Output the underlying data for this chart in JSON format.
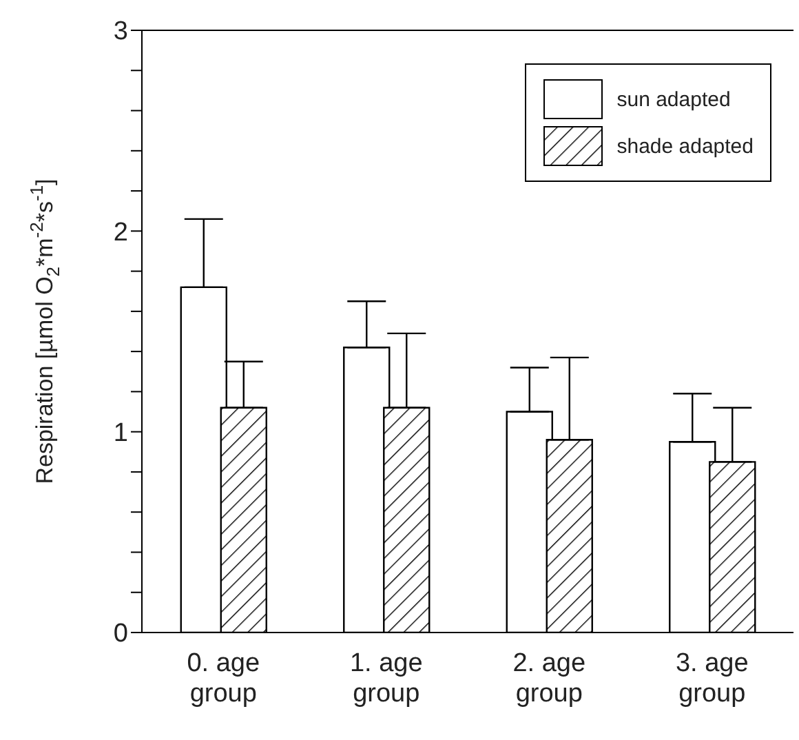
{
  "chart_data": {
    "type": "bar",
    "ylabel": "Respiration [µmol O$_{2}$*m$^{-2}$*s$^{-1}$]",
    "categories": [
      "0. age group",
      "1. age group",
      "2. age group",
      "3. age group"
    ],
    "series": [
      {
        "name": "sun adapted",
        "color": "#ffffff",
        "values": [
          1.72,
          1.42,
          1.1,
          0.95
        ],
        "errors": [
          [
            1.72,
            2.06
          ],
          [
            1.42,
            1.65
          ],
          [
            1.1,
            1.32
          ],
          [
            0.95,
            1.19
          ]
        ]
      },
      {
        "name": "shade adapted",
        "color": "#000000",
        "values": [
          1.12,
          1.12,
          0.96,
          0.85
        ],
        "errors": [
          [
            1.12,
            1.35
          ],
          [
            1.12,
            1.49
          ],
          [
            0.96,
            1.37
          ],
          [
            0.85,
            1.12
          ]
        ]
      }
    ],
    "ylim": [
      0,
      3
    ],
    "yticks": [
      0,
      {
        "value": 0.2,
        "label": null
      },
      {
        "value": 0.4,
        "label": null
      },
      {
        "value": 0.6,
        "label": null
      },
      {
        "value": 0.8,
        "label": null
      },
      1,
      {
        "value": 1.2,
        "label": null
      },
      {
        "value": 1.4,
        "label": null
      },
      {
        "value": 1.6,
        "label": null
      },
      {
        "value": 1.8,
        "label": null
      },
      2,
      {
        "value": 2.2,
        "label": null
      },
      {
        "value": 2.4,
        "label": null
      },
      {
        "value": 2.6,
        "label": null
      },
      {
        "value": 2.8,
        "label": null
      },
      3
    ],
    "legend": "top right",
    "grid": false
  }
}
